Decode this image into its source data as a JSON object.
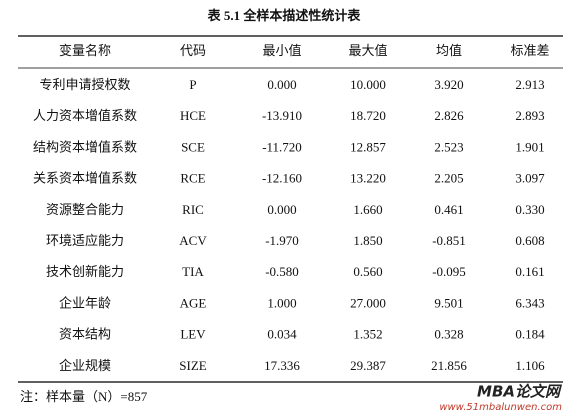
{
  "title": "表 5.1 全样本描述性统计表",
  "table": {
    "header": [
      "变量名称",
      "代码",
      "最小值",
      "最大值",
      "均值",
      "标准差"
    ],
    "rows": [
      [
        "专利申请授权数",
        "P",
        "0.000",
        "10.000",
        "3.920",
        "2.913"
      ],
      [
        "人力资本增值系数",
        "HCE",
        "-13.910",
        "18.720",
        "2.826",
        "2.893"
      ],
      [
        "结构资本增值系数",
        "SCE",
        "-11.720",
        "12.857",
        "2.523",
        "1.901"
      ],
      [
        "关系资本增值系数",
        "RCE",
        "-12.160",
        "13.220",
        "2.205",
        "3.097"
      ],
      [
        "资源整合能力",
        "RIC",
        "0.000",
        "1.660",
        "0.461",
        "0.330"
      ],
      [
        "环境适应能力",
        "ACV",
        "-1.970",
        "1.850",
        "-0.851",
        "0.608"
      ],
      [
        "技术创新能力",
        "TIA",
        "-0.580",
        "0.560",
        "-0.095",
        "0.161"
      ],
      [
        "企业年龄",
        "AGE",
        "1.000",
        "27.000",
        "9.501",
        "6.343"
      ],
      [
        "资本结构",
        "LEV",
        "0.034",
        "1.352",
        "0.328",
        "0.184"
      ],
      [
        "企业规模",
        "SIZE",
        "17.336",
        "29.387",
        "21.856",
        "1.106"
      ]
    ]
  },
  "note": "注：样本量（N）=857",
  "watermark": {
    "brand": "MBA论文网",
    "url": "www.51mbalunwen.com"
  }
}
